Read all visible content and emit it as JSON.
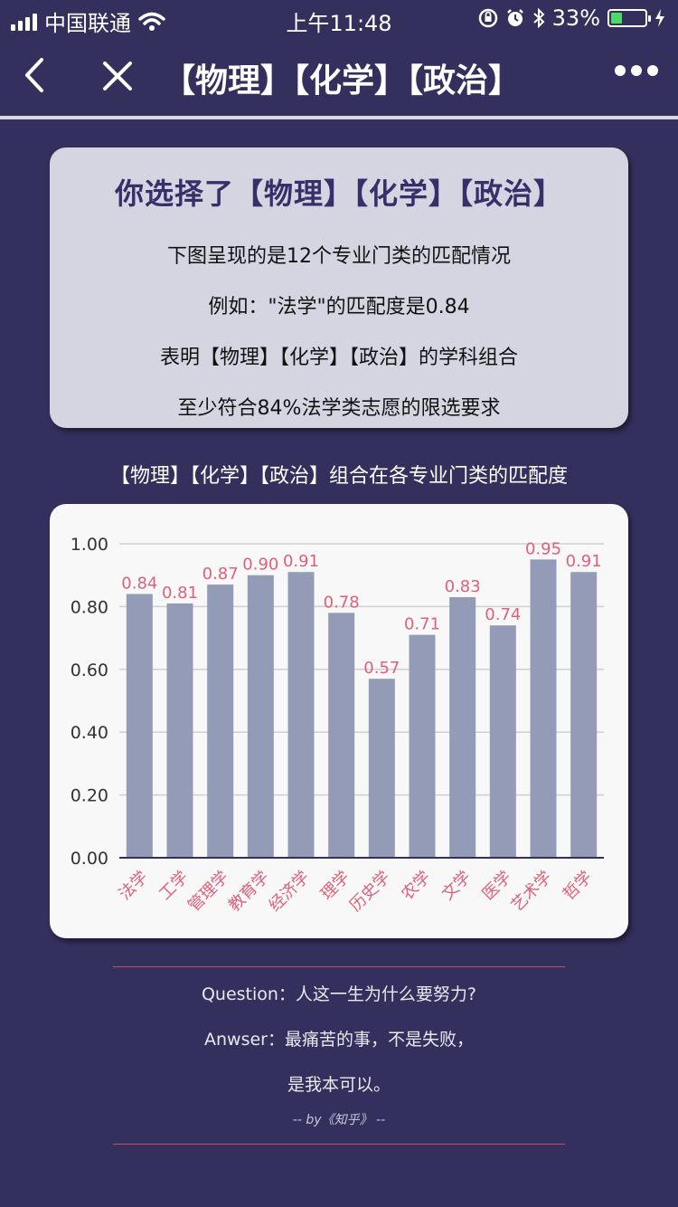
{
  "status_bar": {
    "carrier": "中国联通",
    "time": "上午11:48",
    "battery": "33%",
    "battery_level": 0.33
  },
  "nav": {
    "title": "【物理】【化学】【政治】"
  },
  "info_card": {
    "title": "你选择了【物理】【化学】【政治】",
    "lines": [
      "下图呈现的是12个专业门类的匹配情况",
      "例如：\"法学\"的匹配度是0.84",
      "表明【物理】【化学】【政治】的学科组合",
      "至少符合84%法学类志愿的限选要求"
    ]
  },
  "chart_caption": "【物理】【化学】【政治】组合在各专业门类的匹配度",
  "chart_data": {
    "type": "bar",
    "categories": [
      "法学",
      "工学",
      "管理学",
      "教育学",
      "经济学",
      "理学",
      "历史学",
      "农学",
      "文学",
      "医学",
      "艺术学",
      "哲学"
    ],
    "values": [
      0.84,
      0.81,
      0.87,
      0.9,
      0.91,
      0.78,
      0.57,
      0.71,
      0.83,
      0.74,
      0.95,
      0.91
    ],
    "yticks": [
      "0.00",
      "0.20",
      "0.40",
      "0.60",
      "0.80",
      "1.00"
    ],
    "ylim": [
      0,
      1
    ],
    "grid": true,
    "bar_color": "#939bb6",
    "label_color": "#e0607a"
  },
  "quote": {
    "question": "Question：人这一生为什么要努力?",
    "answer_1": "Anwser：最痛苦的事，不是失败，",
    "answer_2": "是我本可以。",
    "by": "-- by《知乎》 --"
  }
}
